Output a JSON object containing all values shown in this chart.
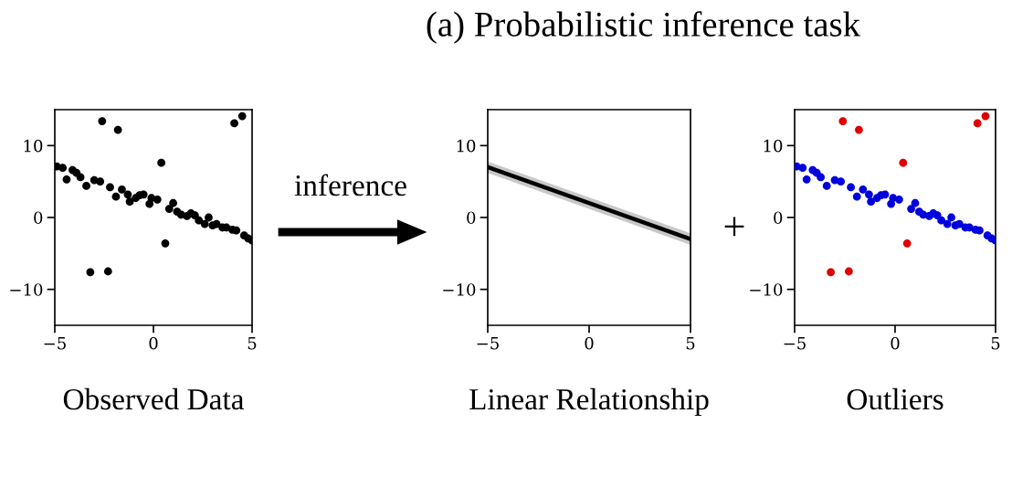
{
  "chart_data": [
    {
      "type": "scatter",
      "xlabel": "Observed Data",
      "annotations": [
        "(a) Probabilistic inference task",
        "inference"
      ],
      "xlim": [
        -5,
        5
      ],
      "ylim": [
        -15,
        15
      ],
      "xticks": [
        -5,
        0,
        5
      ],
      "yticks": [
        -10,
        0,
        10
      ],
      "marker": "circle",
      "series": [
        {
          "color": "#000000",
          "x": [
            -4.9,
            -4.6,
            -4.4,
            -4.1,
            -3.9,
            -3.7,
            -3.4,
            -3.0,
            -2.7,
            -2.2,
            -1.9,
            -1.6,
            -1.3,
            -1.2,
            -0.9,
            -0.7,
            -0.5,
            -0.2,
            -0.1,
            0.2,
            0.8,
            1.0,
            1.2,
            1.4,
            1.7,
            1.9,
            2.1,
            2.3,
            2.6,
            2.8,
            3.0,
            3.2,
            3.5,
            3.7,
            4.0,
            4.2,
            4.6,
            4.8,
            5.0,
            -2.6,
            -1.8,
            0.4,
            0.6,
            -3.2,
            -2.3,
            4.1,
            4.5
          ],
          "values": [
            7.1,
            6.9,
            5.3,
            6.6,
            6.2,
            5.6,
            4.4,
            5.2,
            5.0,
            4.2,
            2.9,
            3.9,
            3.2,
            2.2,
            2.7,
            3.1,
            3.2,
            1.9,
            2.7,
            2.5,
            1.2,
            2.0,
            0.8,
            0.4,
            0.2,
            0.6,
            0.3,
            -0.4,
            -0.9,
            0.0,
            -1.1,
            -0.9,
            -1.4,
            -1.4,
            -1.7,
            -1.8,
            -2.5,
            -2.9,
            -3.2,
            13.4,
            12.2,
            7.6,
            -3.6,
            -7.6,
            -7.5,
            13.1,
            14.1
          ]
        }
      ]
    },
    {
      "type": "line",
      "xlabel": "Linear Relationship",
      "xlim": [
        -5,
        5
      ],
      "ylim": [
        -15,
        15
      ],
      "xticks": [
        -5,
        0,
        5
      ],
      "yticks": [
        -10,
        0,
        10
      ],
      "series": [
        {
          "color": "#000000",
          "x": [
            -5,
            5
          ],
          "values": [
            7.0,
            -3.0
          ],
          "lower": [
            6.2,
            -3.8
          ],
          "upper": [
            7.8,
            -2.2
          ]
        }
      ]
    },
    {
      "type": "scatter",
      "xlabel": "Outliers",
      "annotations": [
        "+"
      ],
      "xlim": [
        -5,
        5
      ],
      "ylim": [
        -15,
        15
      ],
      "xticks": [
        -5,
        0,
        5
      ],
      "yticks": [
        -10,
        0,
        10
      ],
      "marker": "circle",
      "series": [
        {
          "color": "#0000dd",
          "x": [
            -4.9,
            -4.6,
            -4.4,
            -4.1,
            -3.9,
            -3.7,
            -3.4,
            -3.0,
            -2.7,
            -2.2,
            -1.9,
            -1.6,
            -1.3,
            -1.2,
            -0.9,
            -0.7,
            -0.5,
            -0.2,
            -0.1,
            0.2,
            0.8,
            1.0,
            1.2,
            1.4,
            1.7,
            1.9,
            2.1,
            2.3,
            2.6,
            2.8,
            3.0,
            3.2,
            3.5,
            3.7,
            4.0,
            4.2,
            4.6,
            4.8,
            5.0
          ],
          "values": [
            7.1,
            6.9,
            5.3,
            6.6,
            6.2,
            5.6,
            4.4,
            5.2,
            5.0,
            4.2,
            2.9,
            3.9,
            3.2,
            2.2,
            2.7,
            3.1,
            3.2,
            1.9,
            2.7,
            2.5,
            1.2,
            2.0,
            0.8,
            0.4,
            0.2,
            0.6,
            0.3,
            -0.4,
            -0.9,
            0.0,
            -1.1,
            -0.9,
            -1.4,
            -1.4,
            -1.7,
            -1.8,
            -2.5,
            -2.9,
            -3.2
          ]
        },
        {
          "color": "#e00000",
          "x": [
            -2.6,
            -1.8,
            0.4,
            0.6,
            -3.2,
            -2.3,
            4.1,
            4.5
          ],
          "values": [
            13.4,
            12.2,
            7.6,
            -3.6,
            -7.6,
            -7.5,
            13.1,
            14.1
          ]
        }
      ]
    }
  ]
}
